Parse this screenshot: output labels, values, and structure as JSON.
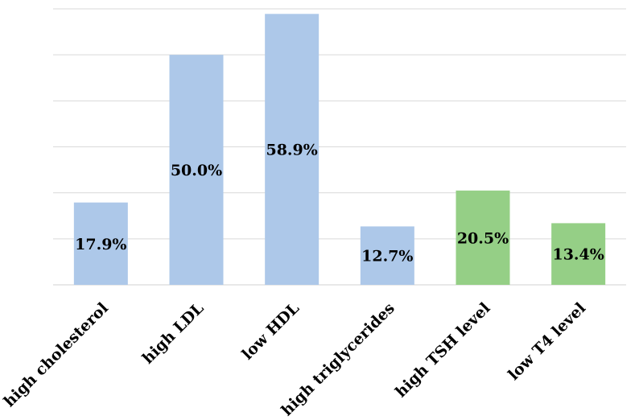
{
  "chart_data": {
    "type": "bar",
    "title": "",
    "xlabel": "",
    "ylabel": "",
    "categories": [
      "high cholesterol",
      "high LDL",
      "low HDL",
      "high triglycerides",
      "high TSH level",
      "low T4 level"
    ],
    "values": [
      17.9,
      50.0,
      58.9,
      12.7,
      20.5,
      13.4
    ],
    "data_labels": [
      "17.9%",
      "50.0%",
      "58.9%",
      "12.7%",
      "20.5%",
      "13.4%"
    ],
    "bar_colors": [
      "#adc8e9",
      "#adc8e9",
      "#adc8e9",
      "#adc8e9",
      "#95cf86",
      "#95cf86"
    ],
    "ylim": [
      0,
      60
    ],
    "y_gridline_step": 10,
    "show_y_tick_labels": false,
    "grid": true,
    "legend": "none"
  }
}
